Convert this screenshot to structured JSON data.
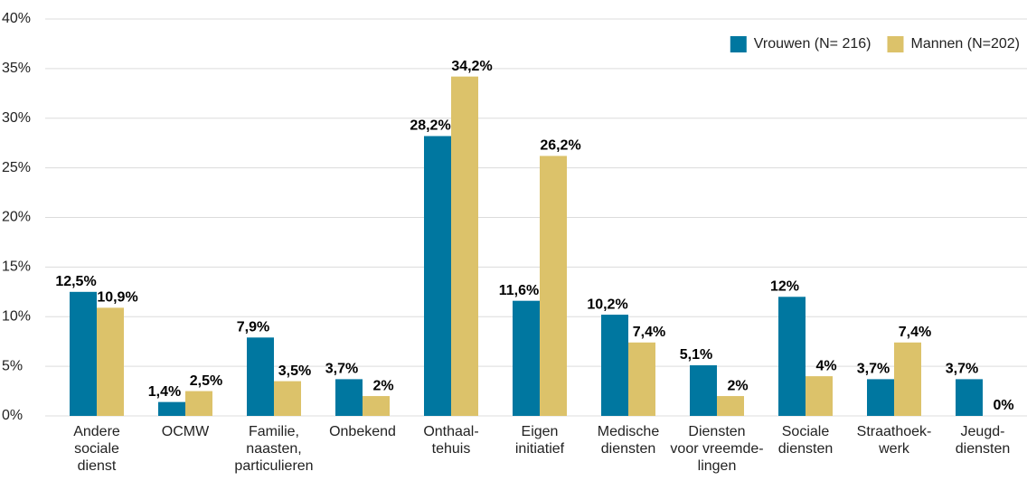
{
  "chart_data": {
    "type": "bar",
    "categories": [
      [
        "Andere",
        "sociale",
        "dienst"
      ],
      [
        "OCMW"
      ],
      [
        "Familie,",
        "naasten,",
        "particulieren"
      ],
      [
        "Onbekend"
      ],
      [
        "Onthaal-",
        "tehuis"
      ],
      [
        "Eigen",
        "initiatief"
      ],
      [
        "Medische",
        "diensten"
      ],
      [
        "Diensten",
        "voor vreemde-",
        "lingen"
      ],
      [
        "Sociale",
        "diensten"
      ],
      [
        "Straathoek-",
        "werk"
      ],
      [
        "Jeugd-",
        "diensten"
      ]
    ],
    "series": [
      {
        "name": "Vrouwen (N= 216)",
        "color": "#0077a0",
        "values": [
          12.5,
          1.4,
          7.9,
          3.7,
          28.2,
          11.6,
          10.2,
          5.1,
          12,
          3.7,
          3.7
        ],
        "value_labels": [
          "12,5%",
          "1,4%",
          "7,9%",
          "3,7%",
          "28,2%",
          "11,6%",
          "10,2%",
          "5,1%",
          "12%",
          "3,7%",
          "3,7%"
        ]
      },
      {
        "name": "Mannen (N=202)",
        "color": "#dcc26a",
        "values": [
          10.9,
          2.5,
          3.5,
          2,
          34.2,
          26.2,
          7.4,
          2,
          4,
          7.4,
          0
        ],
        "value_labels": [
          "10,9%",
          "2,5%",
          "3,5%",
          "2%",
          "34,2%",
          "26,2%",
          "7,4%",
          "2%",
          "4%",
          "7,4%",
          "0%"
        ]
      }
    ],
    "ylim": [
      0,
      40
    ],
    "yticks": [
      {
        "value": 0,
        "label": "0%"
      },
      {
        "value": 5,
        "label": "5%"
      },
      {
        "value": 10,
        "label": "10%"
      },
      {
        "value": 15,
        "label": "15%"
      },
      {
        "value": 20,
        "label": "20%"
      },
      {
        "value": 25,
        "label": "25%"
      },
      {
        "value": 30,
        "label": "30%"
      },
      {
        "value": 35,
        "label": "35%"
      },
      {
        "value": 40,
        "label": "40%"
      }
    ],
    "grid": true,
    "legend": "top-right"
  }
}
